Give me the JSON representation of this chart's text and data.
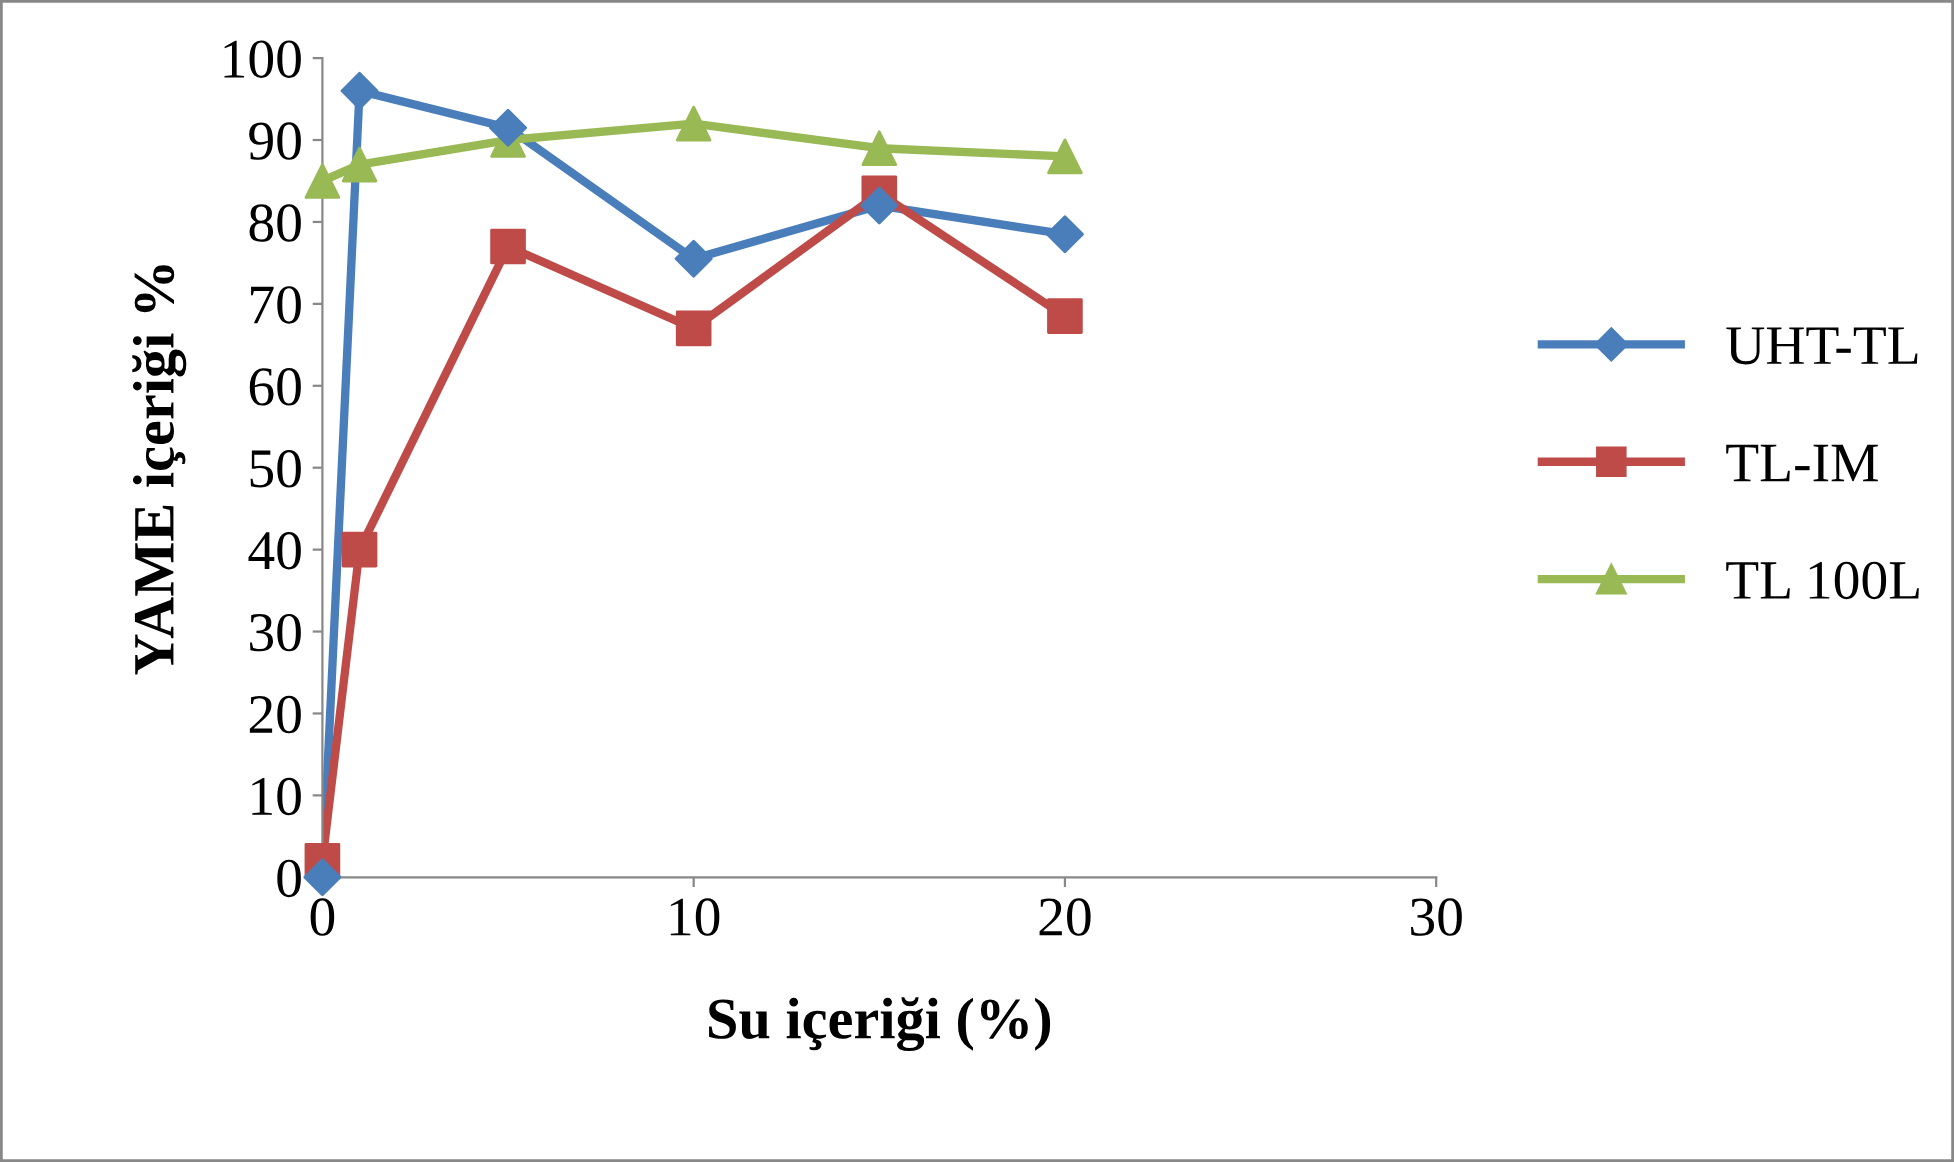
{
  "chart_data": {
    "type": "line",
    "xlabel": "Su içeriği (%)",
    "ylabel": "YAME içeriği %",
    "x": [
      0,
      1,
      5,
      10,
      15,
      20
    ],
    "series": [
      {
        "name": "UHT-TL",
        "color": "#4a7ebb",
        "marker": "diamond",
        "values": [
          0,
          96,
          91.5,
          75.5,
          82,
          78.5
        ]
      },
      {
        "name": "TL-IM",
        "color": "#be4b48",
        "marker": "square",
        "values": [
          2,
          40,
          77,
          67,
          83.5,
          68.5
        ]
      },
      {
        "name": "TL 100L",
        "color": "#98b954",
        "marker": "triangle",
        "values": [
          85,
          87,
          90,
          92,
          89,
          88
        ]
      }
    ],
    "xlim": [
      0,
      30
    ],
    "xticks": [
      0,
      10,
      20,
      30
    ],
    "ylim": [
      0,
      100
    ],
    "yticks": [
      0,
      10,
      20,
      30,
      40,
      50,
      60,
      70,
      80,
      90,
      100
    ],
    "grid": false,
    "legend": "right",
    "line_style": "solid"
  }
}
